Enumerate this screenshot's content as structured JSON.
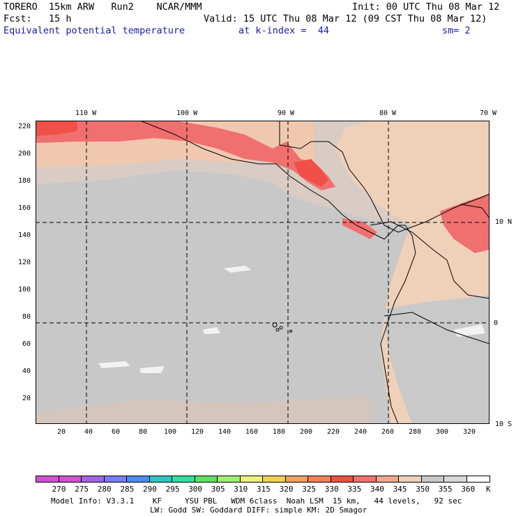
{
  "header": {
    "line1_left": "TORERO  15km ARW   Run2    NCAR/MMM",
    "line1_right": "Init: 00 UTC Thu 08 Mar 12",
    "line2_left": "Fcst:   15 h",
    "line2_right": "Valid: 15 UTC Thu 08 Mar 12 (09 CST Thu 08 Mar 12)",
    "line3_field": "Equivalent potential temperature",
    "line3_level": "at k-index =  44",
    "line3_sm": "sm= 2"
  },
  "map": {
    "grid_x_labels": [
      "20",
      "40",
      "60",
      "80",
      "100",
      "120",
      "140",
      "160",
      "180",
      "200",
      "220",
      "240",
      "260",
      "280",
      "300",
      "320"
    ],
    "grid_y_labels": [
      "220",
      "200",
      "180",
      "160",
      "140",
      "120",
      "100",
      "80",
      "60",
      "40",
      "20"
    ],
    "lon_labels": [
      "110 W",
      "100 W",
      "90 W",
      "80 W",
      "70 W"
    ],
    "lat_labels": [
      "10 N",
      "0",
      "10 S"
    ]
  },
  "colorbar": {
    "colors": [
      "#d052d0",
      "#a066e0",
      "#7c7cf0",
      "#4b8ef0",
      "#30c4c4",
      "#30e0a0",
      "#60e060",
      "#a0f070",
      "#f0f080",
      "#f0d050",
      "#f0a060",
      "#f08058",
      "#f05048",
      "#f07070",
      "#f0a890",
      "#f0d0b8",
      "#c8c8c8",
      "#d8d8d8",
      "#ffffff"
    ],
    "labels": [
      "270",
      "275",
      "280",
      "285",
      "290",
      "295",
      "300",
      "305",
      "310",
      "315",
      "320",
      "325",
      "330",
      "335",
      "340",
      "345",
      "350",
      "355",
      "360"
    ],
    "unit": "K"
  },
  "footer": {
    "line1": "Model Info: V3.3.1    KF     YSU PBL   WDM 6class  Noah LSM  15 km,   44 levels,   92 sec",
    "line2": "LW: Godd SW: Goddard DIFF: simple KM: 2D Smagor"
  }
}
